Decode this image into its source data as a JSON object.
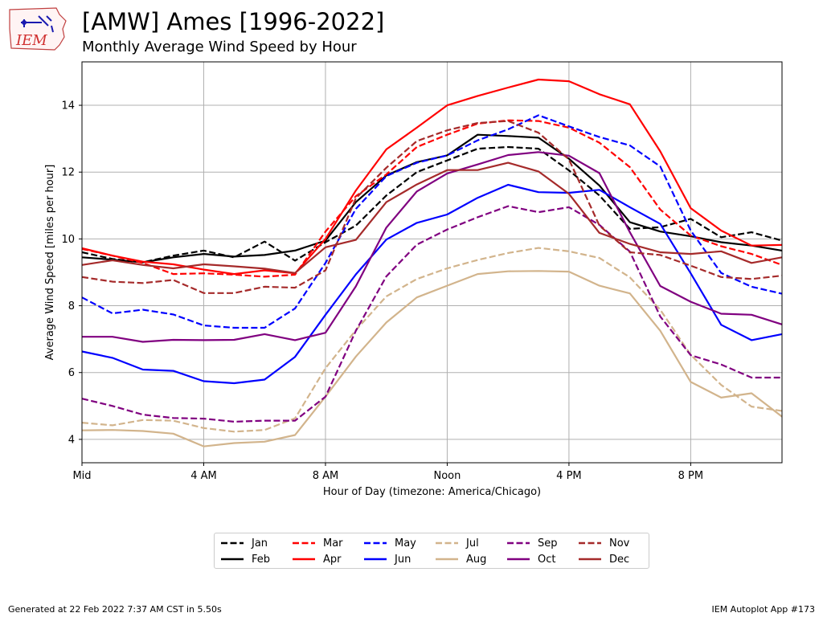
{
  "header": {
    "logo_text": "IEM",
    "title": "[AMW] Ames [1996-2022]",
    "subtitle": "Monthly Average Wind Speed by Hour"
  },
  "footer": {
    "generated": "Generated at 22 Feb 2022 7:37 AM CST in 5.50s",
    "app": "IEM Autoplot App #173"
  },
  "chart_data": {
    "type": "line",
    "xlabel": "Hour of Day (timezone: America/Chicago)",
    "ylabel": "Average Wind Speed [miles per hour]",
    "x": [
      0,
      1,
      2,
      3,
      4,
      5,
      6,
      7,
      8,
      9,
      10,
      11,
      12,
      13,
      14,
      15,
      16,
      17,
      18,
      19,
      20,
      21,
      22,
      23
    ],
    "xlim": [
      0,
      23
    ],
    "ylim": [
      3.3,
      15.3
    ],
    "grid": true,
    "legend_position": "bottom-center",
    "xticks": [
      {
        "value": 0,
        "label": "Mid"
      },
      {
        "value": 4,
        "label": "4 AM"
      },
      {
        "value": 8,
        "label": "8 AM"
      },
      {
        "value": 12,
        "label": "Noon"
      },
      {
        "value": 16,
        "label": "4 PM"
      },
      {
        "value": 20,
        "label": "8 PM"
      }
    ],
    "yticks": [
      {
        "value": 4,
        "label": "4"
      },
      {
        "value": 6,
        "label": "6"
      },
      {
        "value": 8,
        "label": "8"
      },
      {
        "value": 10,
        "label": "10"
      },
      {
        "value": 12,
        "label": "12"
      },
      {
        "value": 14,
        "label": "14"
      }
    ],
    "series": [
      {
        "name": "Jan",
        "color": "#000000",
        "dash": "dashed",
        "values": [
          9.6,
          9.4,
          9.3,
          9.5,
          9.65,
          9.45,
          9.92,
          9.35,
          9.9,
          10.4,
          11.3,
          12.0,
          12.35,
          12.7,
          12.75,
          12.7,
          12.05,
          11.3,
          10.3,
          10.35,
          10.6,
          10.05,
          10.2,
          9.95
        ]
      },
      {
        "name": "Feb",
        "color": "#000000",
        "dash": "solid",
        "values": [
          9.45,
          9.38,
          9.3,
          9.45,
          9.55,
          9.47,
          9.52,
          9.65,
          9.95,
          11.1,
          11.9,
          12.3,
          12.5,
          13.12,
          13.08,
          13.03,
          12.4,
          11.6,
          10.5,
          10.22,
          10.08,
          9.9,
          9.8,
          9.65
        ]
      },
      {
        "name": "Mar",
        "color": "#ff0000",
        "dash": "dashed",
        "values": [
          9.7,
          9.5,
          9.28,
          8.95,
          8.97,
          8.93,
          8.87,
          8.93,
          10.22,
          11.28,
          11.93,
          12.75,
          13.12,
          13.45,
          13.55,
          13.53,
          13.33,
          12.88,
          12.15,
          10.88,
          10.1,
          9.78,
          9.55,
          9.22
        ]
      },
      {
        "name": "Apr",
        "color": "#ff0000",
        "dash": "solid",
        "values": [
          9.72,
          9.5,
          9.32,
          9.24,
          9.08,
          8.95,
          9.06,
          8.97,
          10.0,
          11.45,
          12.68,
          13.33,
          14.0,
          14.28,
          14.53,
          14.77,
          14.72,
          14.33,
          14.03,
          12.62,
          10.92,
          10.25,
          9.8,
          9.82
        ]
      },
      {
        "name": "May",
        "color": "#0000ff",
        "dash": "dashed",
        "values": [
          8.25,
          7.77,
          7.88,
          7.74,
          7.41,
          7.34,
          7.34,
          7.92,
          9.28,
          10.9,
          11.88,
          12.28,
          12.5,
          12.95,
          13.28,
          13.7,
          13.37,
          13.05,
          12.8,
          12.17,
          10.25,
          8.98,
          8.57,
          8.36
        ]
      },
      {
        "name": "Jun",
        "color": "#0000ff",
        "dash": "solid",
        "values": [
          6.63,
          6.44,
          6.09,
          6.05,
          5.74,
          5.68,
          5.79,
          6.47,
          7.73,
          8.94,
          9.98,
          10.48,
          10.73,
          11.23,
          11.62,
          11.4,
          11.38,
          11.47,
          10.95,
          10.45,
          8.97,
          7.43,
          6.97,
          7.15
        ]
      },
      {
        "name": "Jul",
        "color": "#d2b48c",
        "dash": "dashed",
        "values": [
          4.5,
          4.42,
          4.58,
          4.56,
          4.34,
          4.23,
          4.28,
          4.63,
          6.13,
          7.27,
          8.28,
          8.8,
          9.12,
          9.37,
          9.58,
          9.73,
          9.63,
          9.43,
          8.85,
          7.88,
          6.53,
          5.63,
          4.98,
          4.85
        ]
      },
      {
        "name": "Aug",
        "color": "#d2b48c",
        "dash": "solid",
        "values": [
          4.27,
          4.28,
          4.25,
          4.17,
          3.79,
          3.89,
          3.93,
          4.13,
          5.28,
          6.48,
          7.5,
          8.25,
          8.6,
          8.95,
          9.03,
          9.04,
          9.02,
          8.6,
          8.37,
          7.25,
          5.72,
          5.25,
          5.38,
          4.68
        ]
      },
      {
        "name": "Sep",
        "color": "#800080",
        "dash": "dashed",
        "values": [
          5.22,
          5.0,
          4.74,
          4.64,
          4.62,
          4.53,
          4.56,
          4.56,
          5.28,
          7.25,
          8.88,
          9.83,
          10.28,
          10.65,
          10.98,
          10.8,
          10.95,
          10.42,
          9.62,
          7.68,
          6.52,
          6.24,
          5.85,
          5.85
        ]
      },
      {
        "name": "Oct",
        "color": "#800080",
        "dash": "solid",
        "values": [
          7.07,
          7.07,
          6.92,
          6.98,
          6.97,
          6.98,
          7.15,
          6.97,
          7.19,
          8.58,
          10.34,
          11.42,
          11.96,
          12.23,
          12.51,
          12.6,
          12.49,
          11.97,
          10.2,
          8.59,
          8.12,
          7.76,
          7.73,
          7.44
        ]
      },
      {
        "name": "Nov",
        "color": "#a52a2a",
        "dash": "dashed",
        "values": [
          8.86,
          8.72,
          8.68,
          8.77,
          8.38,
          8.38,
          8.57,
          8.54,
          9.06,
          11.22,
          12.13,
          12.93,
          13.25,
          13.47,
          13.53,
          13.18,
          12.38,
          10.4,
          9.6,
          9.52,
          9.2,
          8.86,
          8.8,
          8.9
        ]
      },
      {
        "name": "Dec",
        "color": "#a52a2a",
        "dash": "solid",
        "values": [
          9.22,
          9.36,
          9.22,
          9.12,
          9.24,
          9.18,
          9.11,
          8.98,
          9.75,
          9.97,
          11.1,
          11.63,
          12.06,
          12.06,
          12.28,
          12.02,
          11.35,
          10.18,
          9.85,
          9.6,
          9.55,
          9.63,
          9.28,
          9.45
        ]
      }
    ]
  }
}
